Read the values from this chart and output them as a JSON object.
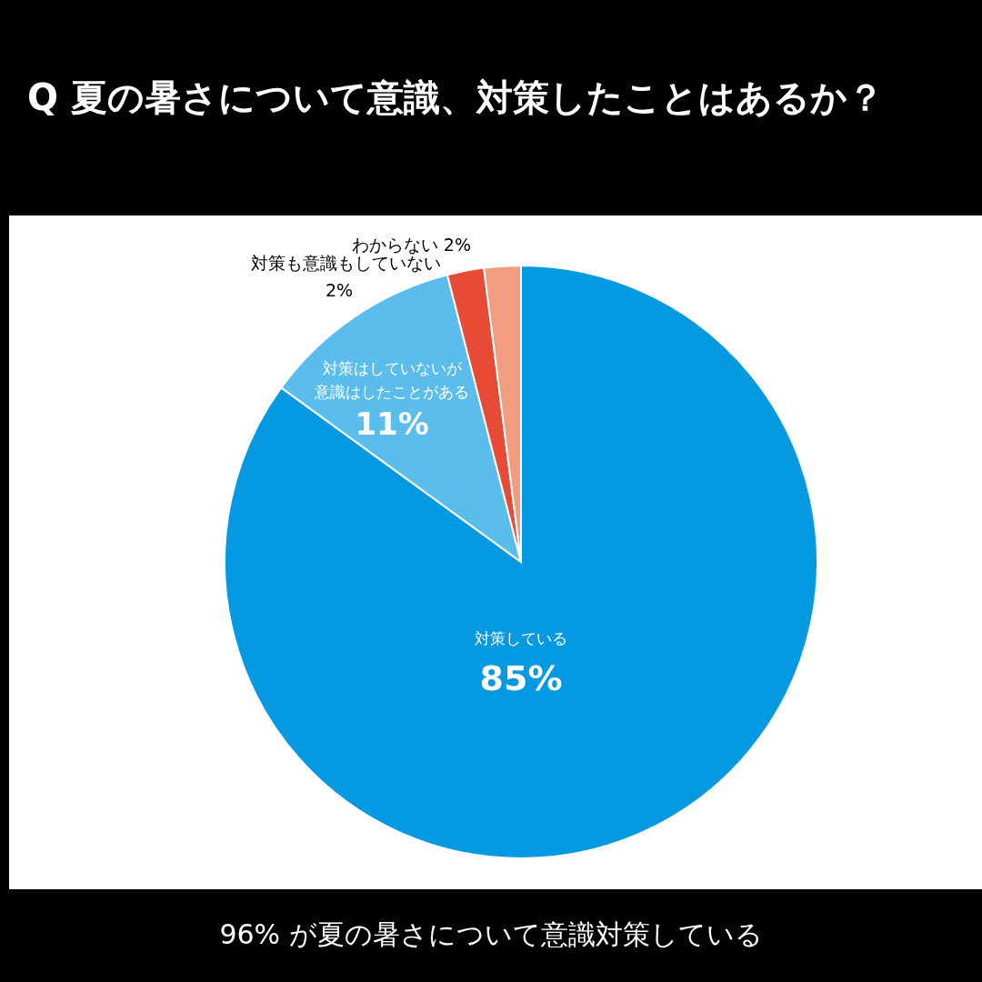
{
  "chart_data": {
    "type": "pie",
    "title": "Q 夏の暑さについて意識、対策したことはあるか？",
    "categories": [
      "対策している",
      "対策はしていないが意識はしたことがある",
      "対策も意識もしていない",
      "わからない"
    ],
    "values": [
      85,
      11,
      2,
      2
    ],
    "colors": [
      "#0499e0",
      "#5bbdec",
      "#e84b35",
      "#f29c80"
    ],
    "value_labels": [
      "85%",
      "11%",
      "2%",
      "2%"
    ],
    "annotations": [
      "96% が夏の暑さについて意識対策している"
    ]
  }
}
